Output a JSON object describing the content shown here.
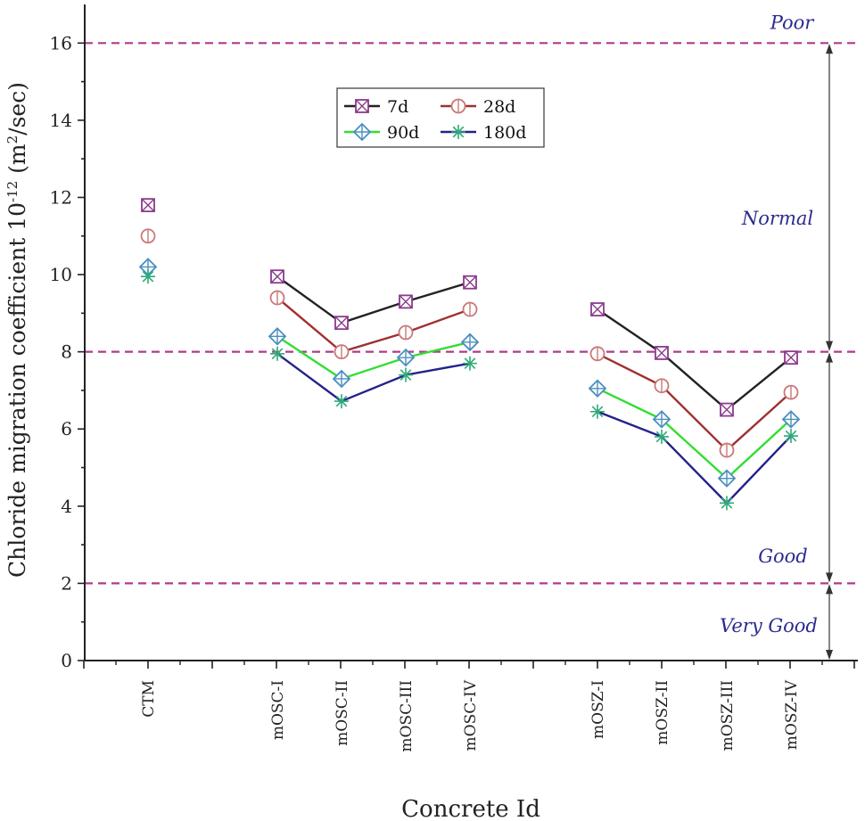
{
  "chart_data": {
    "type": "line",
    "xlabel": "Concrete Id",
    "ylabel_main": "Chloride migration coefficient 10",
    "ylabel_exp": "-12",
    "ylabel_unit_open": " (m",
    "ylabel_unit_sup": "2",
    "ylabel_unit_close": "/sec)",
    "ylim": [
      0,
      17
    ],
    "yticks": [
      0,
      2,
      4,
      6,
      8,
      10,
      12,
      14,
      16
    ],
    "categories": [
      "CTM",
      "mOSC-I",
      "mOSC-II",
      "mOSC-III",
      "mOSC-IV",
      "mOSZ-I",
      "mOSZ-II",
      "mOSZ-III",
      "mOSZ-IV"
    ],
    "groups": [
      [
        0
      ],
      [
        1,
        2,
        3,
        4
      ],
      [
        5,
        6,
        7,
        8
      ]
    ],
    "series": [
      {
        "name": "7d",
        "marker": "square-x",
        "color": "#8b3a8b",
        "line_color": "#222222",
        "values": [
          11.8,
          9.95,
          8.75,
          9.3,
          9.8,
          9.1,
          7.97,
          6.5,
          7.85
        ]
      },
      {
        "name": "28d",
        "marker": "circle-bar",
        "color": "#cc7777",
        "line_color": "#a03030",
        "values": [
          11.0,
          9.4,
          8.0,
          8.5,
          9.1,
          7.95,
          7.12,
          5.45,
          6.95
        ]
      },
      {
        "name": "90d",
        "marker": "diamond-plus",
        "color": "#4a8fc0",
        "line_color": "#33dd33",
        "values": [
          10.2,
          8.4,
          7.3,
          7.85,
          8.25,
          7.05,
          6.25,
          4.72,
          6.25
        ]
      },
      {
        "name": "180d",
        "marker": "asterisk",
        "color": "#2eaa77",
        "line_color": "#22228a",
        "values": [
          9.95,
          7.95,
          6.72,
          7.4,
          7.7,
          6.45,
          5.8,
          4.08,
          5.82
        ]
      }
    ],
    "thresholds": [
      2,
      8,
      16
    ],
    "zones": [
      {
        "label": "Poor",
        "value": 16
      },
      {
        "label": "Normal",
        "value": 8
      },
      {
        "label": "Good",
        "value": 2
      },
      {
        "label": "Very Good",
        "value": 0
      }
    ],
    "legend_position": "top-center",
    "grid": false
  }
}
